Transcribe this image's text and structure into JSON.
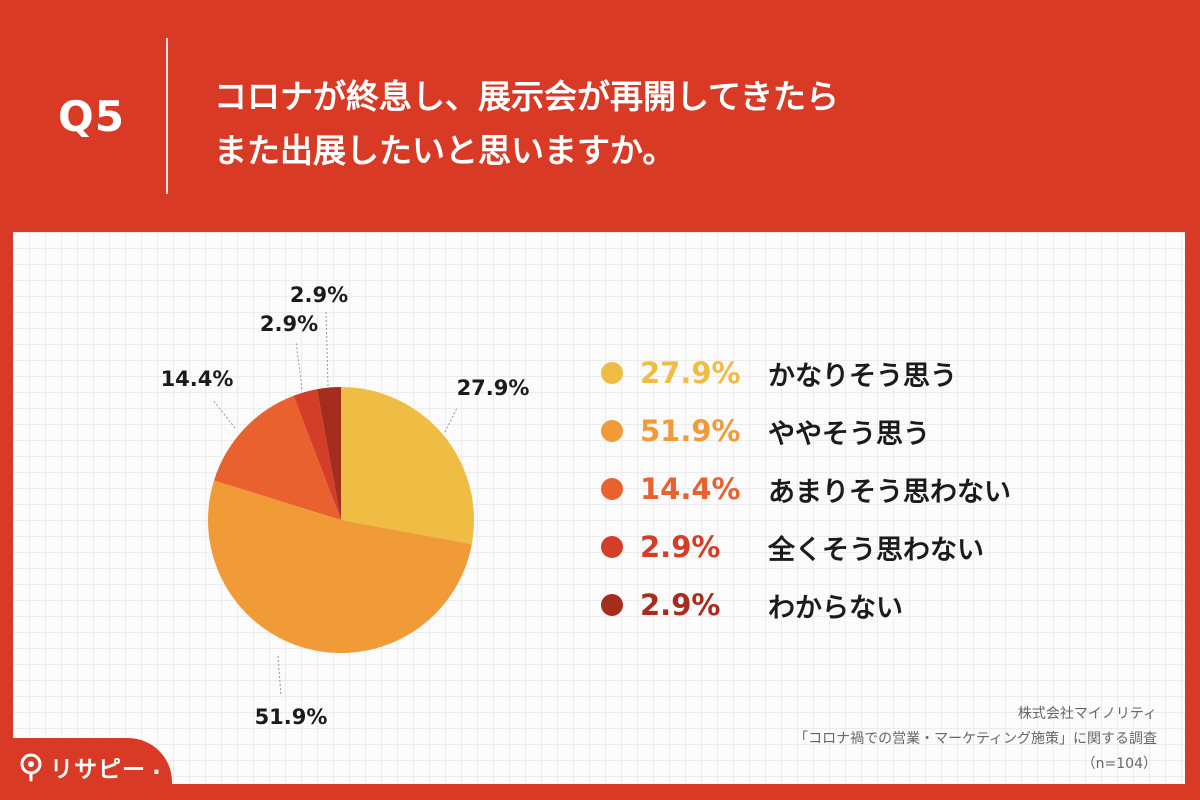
{
  "header": {
    "question_number": "Q5",
    "title_line1": "コロナが終息し、展示会が再開してきたら",
    "title_line2": "また出展したいと思いますか。"
  },
  "chart_data": {
    "type": "pie",
    "title": "コロナが終息し、展示会が再開してきたらまた出展したいと思いますか。",
    "categories": [
      "かなりそう思う",
      "ややそう思う",
      "あまりそう思わない",
      "全くそう思わない",
      "わからない"
    ],
    "values": [
      27.9,
      51.9,
      14.4,
      2.9,
      2.9
    ],
    "value_labels": [
      "27.9%",
      "51.9%",
      "14.4%",
      "2.9%",
      "2.9%"
    ],
    "colors": [
      "#efbd44",
      "#f09a38",
      "#e8612e",
      "#d43d27",
      "#a52d1e"
    ],
    "legend_position": "right"
  },
  "legend": [
    {
      "pct": "27.9%",
      "label": "かなりそう思う"
    },
    {
      "pct": "51.9%",
      "label": "ややそう思う"
    },
    {
      "pct": "14.4%",
      "label": "あまりそう思わない"
    },
    {
      "pct": "2.9%",
      "label": "全くそう思わない"
    },
    {
      "pct": "2.9%",
      "label": "わからない"
    }
  ],
  "source": {
    "line1": "株式会社マイノリティ",
    "line2": "「コロナ禍での営業・マーケティング施策」に関する調査",
    "line3": "（n=104）"
  },
  "logo": {
    "text": "リサピー",
    "mark": "."
  }
}
